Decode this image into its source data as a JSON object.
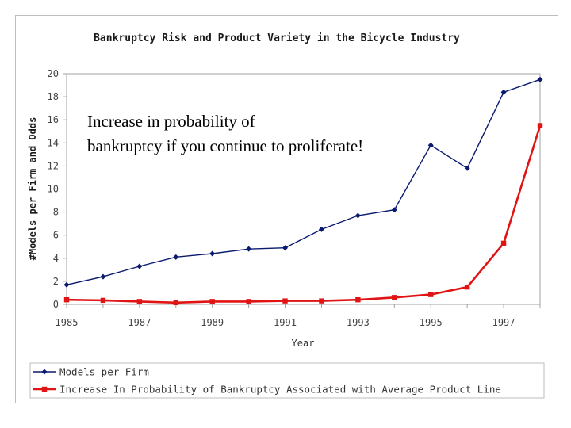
{
  "chart_data": {
    "type": "line",
    "title": "Bankruptcy Risk and Product Variety in the Bicycle Industry",
    "xlabel": "Year",
    "ylabel": "#Models per Firm and Odds",
    "xlim": [
      1985,
      1998
    ],
    "ylim": [
      0,
      20
    ],
    "x_ticks": [
      "1985",
      "1987",
      "1989",
      "1991",
      "1993",
      "1995",
      "1997"
    ],
    "y_ticks": [
      "0",
      "2",
      "4",
      "6",
      "8",
      "10",
      "12",
      "14",
      "16",
      "18",
      "20"
    ],
    "legend_position": "bottom",
    "grid": false,
    "x": [
      1985,
      1986,
      1987,
      1988,
      1989,
      1990,
      1991,
      1992,
      1993,
      1994,
      1995,
      1996,
      1997,
      1998
    ],
    "series": [
      {
        "name": "Models per Firm",
        "color": "#0a1a6e",
        "marker": "diamond",
        "values": [
          1.7,
          2.4,
          3.3,
          4.1,
          4.4,
          4.8,
          4.9,
          6.5,
          7.7,
          8.2,
          13.8,
          11.8,
          18.4,
          19.5
        ]
      },
      {
        "name": "Increase In Probability of Bankruptcy Associated with Average Product Line",
        "color": "#e01414",
        "marker": "square",
        "values": [
          0.4,
          0.35,
          0.25,
          0.15,
          0.25,
          0.25,
          0.3,
          0.3,
          0.4,
          0.6,
          0.85,
          1.5,
          5.3,
          15.5
        ]
      }
    ],
    "annotation": {
      "line1": "Increase in probability of",
      "line2": "bankruptcy if you continue to proliferate!"
    }
  }
}
